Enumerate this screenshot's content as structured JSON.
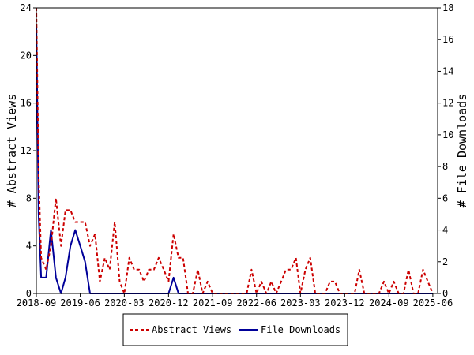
{
  "chart_data": {
    "type": "line",
    "title": "",
    "xlabel": "",
    "ylabel": "# Abstract Views",
    "y2label": "# File Downloads",
    "xlim": [
      "2018-09",
      "2025-07"
    ],
    "ylim": [
      0,
      24
    ],
    "y2lim": [
      0,
      18
    ],
    "yticks": [
      0,
      4,
      8,
      12,
      16,
      20,
      24
    ],
    "y2ticks": [
      0,
      2,
      4,
      6,
      8,
      10,
      12,
      14,
      16,
      18
    ],
    "xticks": [
      "2018-09",
      "2019-06",
      "2020-03",
      "2020-12",
      "2021-09",
      "2022-06",
      "2023-03",
      "2023-12",
      "2024-09",
      "2025-06"
    ],
    "grid": false,
    "legend": "bottom",
    "series": [
      {
        "name": "Abstract Views",
        "axis": "left",
        "color": "#cc0000",
        "dash": true,
        "points": [
          [
            "2018-09-01",
            24
          ],
          [
            "2018-09-15",
            10
          ],
          [
            "2018-10-01",
            3
          ],
          [
            "2018-11-01",
            2
          ],
          [
            "2018-12-01",
            4
          ],
          [
            "2019-01-01",
            8
          ],
          [
            "2019-02-01",
            4
          ],
          [
            "2019-03-01",
            7
          ],
          [
            "2019-04-01",
            7
          ],
          [
            "2019-05-01",
            6
          ],
          [
            "2019-06-01",
            6
          ],
          [
            "2019-07-01",
            6
          ],
          [
            "2019-08-01",
            4
          ],
          [
            "2019-09-01",
            5
          ],
          [
            "2019-10-01",
            1
          ],
          [
            "2019-11-01",
            3
          ],
          [
            "2019-12-01",
            2
          ],
          [
            "2020-01-01",
            6
          ],
          [
            "2020-02-01",
            1
          ],
          [
            "2020-03-01",
            0
          ],
          [
            "2020-04-01",
            3
          ],
          [
            "2020-05-01",
            2
          ],
          [
            "2020-06-01",
            2
          ],
          [
            "2020-07-01",
            1
          ],
          [
            "2020-08-01",
            2
          ],
          [
            "2020-09-01",
            2
          ],
          [
            "2020-10-01",
            3
          ],
          [
            "2020-11-01",
            2
          ],
          [
            "2020-12-01",
            1
          ],
          [
            "2021-01-01",
            5
          ],
          [
            "2021-02-01",
            3
          ],
          [
            "2021-03-01",
            3
          ],
          [
            "2021-04-01",
            0
          ],
          [
            "2021-05-01",
            0
          ],
          [
            "2021-06-01",
            2
          ],
          [
            "2021-07-01",
            0
          ],
          [
            "2021-08-01",
            1
          ],
          [
            "2021-09-01",
            0
          ],
          [
            "2021-10-01",
            0
          ],
          [
            "2021-11-01",
            0
          ],
          [
            "2021-12-01",
            0
          ],
          [
            "2022-01-01",
            0
          ],
          [
            "2022-02-01",
            0
          ],
          [
            "2022-03-01",
            0
          ],
          [
            "2022-04-01",
            0
          ],
          [
            "2022-05-01",
            2
          ],
          [
            "2022-06-01",
            0
          ],
          [
            "2022-07-01",
            1
          ],
          [
            "2022-08-01",
            0
          ],
          [
            "2022-09-01",
            1
          ],
          [
            "2022-10-01",
            0
          ],
          [
            "2022-11-01",
            1
          ],
          [
            "2022-12-01",
            2
          ],
          [
            "2023-01-01",
            2
          ],
          [
            "2023-02-01",
            3
          ],
          [
            "2023-03-01",
            0
          ],
          [
            "2023-04-01",
            2
          ],
          [
            "2023-05-01",
            3
          ],
          [
            "2023-06-01",
            0
          ],
          [
            "2023-07-01",
            0
          ],
          [
            "2023-08-01",
            0
          ],
          [
            "2023-09-01",
            1
          ],
          [
            "2023-10-01",
            1
          ],
          [
            "2023-11-01",
            0
          ],
          [
            "2023-12-01",
            0
          ],
          [
            "2024-01-01",
            0
          ],
          [
            "2024-02-01",
            0
          ],
          [
            "2024-03-01",
            2
          ],
          [
            "2024-04-01",
            0
          ],
          [
            "2024-05-01",
            0
          ],
          [
            "2024-06-01",
            0
          ],
          [
            "2024-07-01",
            0
          ],
          [
            "2024-08-01",
            1
          ],
          [
            "2024-09-01",
            0
          ],
          [
            "2024-10-01",
            1
          ],
          [
            "2024-11-01",
            0
          ],
          [
            "2024-12-01",
            0
          ],
          [
            "2025-01-01",
            2
          ],
          [
            "2025-02-01",
            0
          ],
          [
            "2025-03-01",
            0
          ],
          [
            "2025-04-01",
            2
          ],
          [
            "2025-05-01",
            1
          ],
          [
            "2025-06-01",
            0
          ]
        ]
      },
      {
        "name": "File Downloads",
        "axis": "right",
        "color": "#000099",
        "dash": false,
        "points": [
          [
            "2018-09-01",
            17
          ],
          [
            "2018-09-15",
            5
          ],
          [
            "2018-10-01",
            1
          ],
          [
            "2018-11-01",
            1
          ],
          [
            "2018-12-01",
            4
          ],
          [
            "2019-01-01",
            1
          ],
          [
            "2019-02-01",
            0
          ],
          [
            "2019-03-01",
            1
          ],
          [
            "2019-04-01",
            3
          ],
          [
            "2019-05-01",
            4
          ],
          [
            "2019-06-01",
            3
          ],
          [
            "2019-07-01",
            2
          ],
          [
            "2019-08-01",
            0
          ],
          [
            "2019-09-01",
            0
          ],
          [
            "2019-10-01",
            0
          ],
          [
            "2019-11-01",
            0
          ],
          [
            "2019-12-01",
            0
          ],
          [
            "2020-01-01",
            0
          ],
          [
            "2020-02-01",
            0
          ],
          [
            "2020-03-01",
            0
          ],
          [
            "2020-04-01",
            0
          ],
          [
            "2020-05-01",
            0
          ],
          [
            "2020-06-01",
            0
          ],
          [
            "2020-07-01",
            0
          ],
          [
            "2020-08-01",
            0
          ],
          [
            "2020-09-01",
            0
          ],
          [
            "2020-10-01",
            0
          ],
          [
            "2020-11-01",
            0
          ],
          [
            "2020-12-01",
            0
          ],
          [
            "2021-01-01",
            1
          ],
          [
            "2021-02-01",
            0
          ],
          [
            "2021-03-01",
            0
          ],
          [
            "2021-06-01",
            0
          ],
          [
            "2021-09-01",
            0
          ],
          [
            "2021-12-01",
            0
          ],
          [
            "2022-03-01",
            0
          ],
          [
            "2022-06-01",
            0
          ],
          [
            "2022-09-01",
            0
          ],
          [
            "2022-12-01",
            0
          ],
          [
            "2023-03-01",
            0
          ],
          [
            "2023-06-01",
            0
          ],
          [
            "2023-09-01",
            0
          ],
          [
            "2023-12-01",
            0
          ],
          [
            "2024-03-01",
            0
          ],
          [
            "2024-06-01",
            0
          ],
          [
            "2024-09-01",
            0
          ],
          [
            "2024-12-01",
            0
          ],
          [
            "2025-03-01",
            0
          ],
          [
            "2025-06-01",
            0
          ]
        ]
      }
    ]
  }
}
